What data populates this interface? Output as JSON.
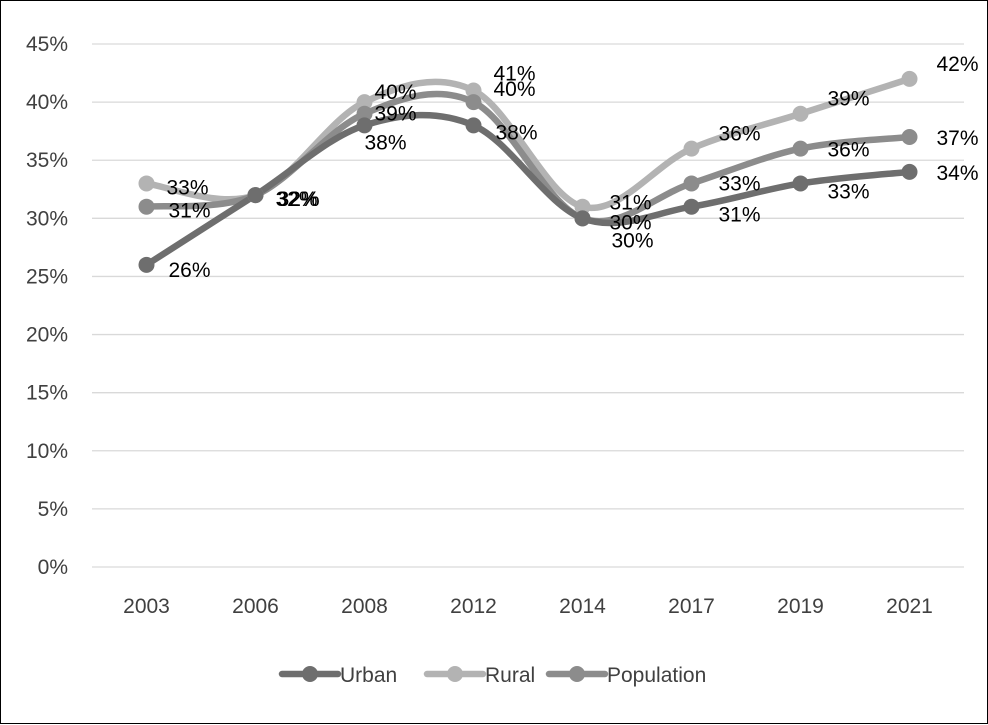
{
  "chart_data": {
    "type": "line",
    "title": "",
    "xlabel": "",
    "ylabel": "",
    "categories": [
      "2003",
      "2006",
      "2008",
      "2012",
      "2014",
      "2017",
      "2019",
      "2021"
    ],
    "ylim": [
      0,
      45
    ],
    "ytick_step": 5,
    "ytick_labels": [
      "0%",
      "5%",
      "10%",
      "15%",
      "20%",
      "25%",
      "30%",
      "35%",
      "40%",
      "45%"
    ],
    "grid": true,
    "legend_position": "bottom",
    "smooth": true,
    "series": [
      {
        "name": "Urban",
        "color": "#6e6e6e",
        "values": [
          26,
          32,
          38,
          38,
          30,
          31,
          33,
          34
        ],
        "labels": [
          "26%",
          "32%",
          "38%",
          "38%",
          "30%",
          "31%",
          "33%",
          "34%"
        ]
      },
      {
        "name": "Rural",
        "color": "#b3b3b3",
        "values": [
          33,
          32,
          40,
          41,
          31,
          36,
          39,
          42
        ],
        "labels": [
          "33%",
          "32%",
          "40%",
          "41%",
          "31%",
          "36%",
          "39%",
          "42%"
        ]
      },
      {
        "name": "Population",
        "color": "#8c8c8c",
        "values": [
          31,
          32,
          39,
          40,
          30,
          33,
          36,
          37
        ],
        "labels": [
          "31%",
          "32%",
          "39%",
          "40%",
          "30%",
          "33%",
          "36%",
          "37%"
        ]
      }
    ]
  }
}
